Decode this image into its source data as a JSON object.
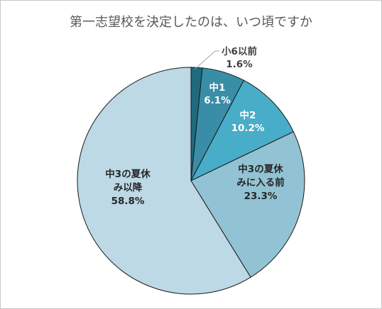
{
  "chart_data": {
    "type": "pie",
    "title": "第一志望校を決定したのは、いつ頃ですか",
    "start_angle_deg": 0,
    "direction": "clockwise",
    "slices": [
      {
        "label_lines": [
          "小6以前"
        ],
        "value": 1.6,
        "value_label": "1.6%",
        "color": "#1f6a7d",
        "label_color": "#404040"
      },
      {
        "label_lines": [
          "中1"
        ],
        "value": 6.1,
        "value_label": "6.1%",
        "color": "#3a8da6",
        "label_color": "#ffffff"
      },
      {
        "label_lines": [
          "中2"
        ],
        "value": 10.2,
        "value_label": "10.2%",
        "color": "#48adc8",
        "label_color": "#ffffff"
      },
      {
        "label_lines": [
          "中3の夏休",
          "みに入る前"
        ],
        "value": 23.3,
        "value_label": "23.3%",
        "color": "#92c3d4",
        "label_color": "#262626"
      },
      {
        "label_lines": [
          "中3の夏休",
          "み以降"
        ],
        "value": 58.8,
        "value_label": "58.8%",
        "color": "#bcd9e5",
        "label_color": "#262626"
      }
    ],
    "legend": "none",
    "slice_border_color": "#1a1a1a"
  }
}
